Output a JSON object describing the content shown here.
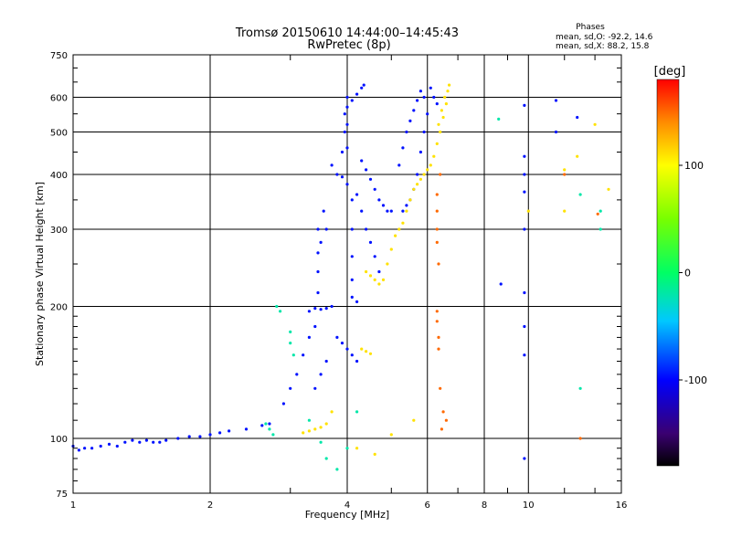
{
  "title_line1": "Tromsø 20150610 14:44:00–14:45:43",
  "title_line2": "RwPretec (8p)",
  "phases": {
    "heading": "Phases",
    "line_o": "mean, sd,O: -92.2, 14.6",
    "line_x": "mean, sd,X:  88.2, 15.8"
  },
  "colorbar": {
    "label": "[deg]",
    "range": [
      -180,
      180
    ],
    "ticks": [
      100,
      0,
      -100
    ],
    "colors": [
      "#000000",
      "#3a0070",
      "#0000ff",
      "#00ffff",
      "#00ff00",
      "#ffff00",
      "#ff8000",
      "#ff0000"
    ]
  },
  "chart_data": {
    "type": "scatter",
    "title": "Tromsø 20150610 14:44:00–14:45:43",
    "subtitle": "RwPretec (8p)",
    "xlabel": "Frequency [MHz]",
    "ylabel": "Stationary phase Virtual Height [km]",
    "x_scale": "log",
    "y_scale": "log",
    "xlim": [
      1,
      16
    ],
    "ylim": [
      75,
      750
    ],
    "x_ticks": [
      1,
      2,
      4,
      6,
      8,
      10,
      16
    ],
    "x_tick_labels": [
      "1",
      "2",
      "4",
      "6",
      "8",
      "10",
      "16"
    ],
    "y_ticks": [
      75,
      100,
      200,
      300,
      400,
      500,
      600,
      750
    ],
    "y_tick_labels": [
      "75",
      "100",
      "200",
      "300",
      "400",
      "500",
      "600",
      "750"
    ],
    "grid": true,
    "series": [
      {
        "color_value": -95,
        "points": [
          [
            1.0,
            96
          ],
          [
            1.03,
            94
          ],
          [
            1.06,
            95
          ],
          [
            1.1,
            95
          ],
          [
            1.15,
            96
          ],
          [
            1.2,
            97
          ],
          [
            1.25,
            96
          ],
          [
            1.3,
            98
          ],
          [
            1.35,
            99
          ],
          [
            1.4,
            98
          ],
          [
            1.45,
            99
          ],
          [
            1.5,
            98
          ],
          [
            1.55,
            98
          ],
          [
            1.6,
            99
          ],
          [
            1.7,
            100
          ],
          [
            1.8,
            101
          ],
          [
            1.9,
            101
          ],
          [
            2.0,
            102
          ],
          [
            2.1,
            103
          ],
          [
            2.2,
            104
          ],
          [
            2.4,
            105
          ],
          [
            2.6,
            107
          ],
          [
            2.7,
            108
          ],
          [
            2.9,
            120
          ],
          [
            3.0,
            130
          ],
          [
            3.1,
            140
          ],
          [
            3.2,
            155
          ],
          [
            3.3,
            170
          ],
          [
            3.4,
            180
          ],
          [
            3.3,
            195
          ],
          [
            3.4,
            198
          ],
          [
            3.5,
            197
          ],
          [
            3.6,
            198
          ],
          [
            3.7,
            200
          ],
          [
            3.45,
            215
          ],
          [
            3.45,
            240
          ],
          [
            3.45,
            265
          ],
          [
            3.45,
            300
          ],
          [
            3.5,
            280
          ],
          [
            3.6,
            300
          ],
          [
            3.55,
            330
          ],
          [
            3.7,
            420
          ],
          [
            3.8,
            400
          ],
          [
            3.9,
            395
          ],
          [
            3.9,
            450
          ],
          [
            3.95,
            500
          ],
          [
            3.95,
            550
          ],
          [
            4.0,
            600
          ],
          [
            4.0,
            520
          ],
          [
            4.0,
            460
          ],
          [
            4.0,
            380
          ],
          [
            4.1,
            350
          ],
          [
            4.1,
            300
          ],
          [
            4.1,
            260
          ],
          [
            4.1,
            230
          ],
          [
            4.1,
            210
          ],
          [
            4.2,
            205
          ],
          [
            4.0,
            570
          ],
          [
            4.1,
            590
          ],
          [
            4.2,
            610
          ],
          [
            4.3,
            630
          ],
          [
            4.35,
            640
          ],
          [
            4.2,
            360
          ],
          [
            4.3,
            330
          ],
          [
            4.4,
            300
          ],
          [
            4.5,
            280
          ],
          [
            4.6,
            260
          ],
          [
            4.7,
            240
          ],
          [
            4.3,
            430
          ],
          [
            4.4,
            410
          ],
          [
            4.5,
            390
          ],
          [
            4.6,
            370
          ],
          [
            4.7,
            350
          ],
          [
            4.8,
            340
          ],
          [
            4.9,
            330
          ],
          [
            5.0,
            330
          ],
          [
            5.2,
            420
          ],
          [
            5.3,
            460
          ],
          [
            5.4,
            500
          ],
          [
            5.5,
            530
          ],
          [
            5.6,
            560
          ],
          [
            5.7,
            590
          ],
          [
            5.8,
            620
          ],
          [
            5.9,
            600
          ],
          [
            6.0,
            550
          ],
          [
            5.9,
            500
          ],
          [
            5.8,
            450
          ],
          [
            5.7,
            400
          ],
          [
            5.6,
            370
          ],
          [
            5.5,
            350
          ],
          [
            5.4,
            340
          ],
          [
            5.3,
            330
          ],
          [
            6.1,
            630
          ],
          [
            6.2,
            600
          ],
          [
            6.3,
            580
          ],
          [
            3.8,
            170
          ],
          [
            3.9,
            165
          ],
          [
            4.0,
            160
          ],
          [
            4.1,
            155
          ],
          [
            4.2,
            150
          ],
          [
            3.4,
            130
          ],
          [
            3.5,
            140
          ],
          [
            3.6,
            150
          ],
          [
            9.8,
            575
          ],
          [
            9.8,
            440
          ],
          [
            9.8,
            400
          ],
          [
            9.8,
            365
          ],
          [
            9.8,
            300
          ],
          [
            9.8,
            215
          ],
          [
            9.8,
            180
          ],
          [
            9.8,
            155
          ],
          [
            9.8,
            90
          ],
          [
            8.7,
            225
          ],
          [
            11.5,
            590
          ],
          [
            11.5,
            500
          ],
          [
            12.8,
            540
          ]
        ]
      },
      {
        "color_value": -20,
        "points": [
          [
            2.65,
            108
          ],
          [
            2.7,
            105
          ],
          [
            2.75,
            102
          ],
          [
            2.8,
            200
          ],
          [
            2.85,
            195
          ],
          [
            3.0,
            175
          ],
          [
            3.0,
            165
          ],
          [
            3.05,
            155
          ],
          [
            3.3,
            110
          ],
          [
            3.5,
            98
          ],
          [
            3.6,
            90
          ],
          [
            3.8,
            85
          ],
          [
            4.0,
            95
          ],
          [
            4.2,
            115
          ],
          [
            8.6,
            535
          ],
          [
            13.0,
            360
          ],
          [
            13.0,
            130
          ],
          [
            14.4,
            300
          ],
          [
            14.4,
            330
          ]
        ]
      },
      {
        "color_value": 110,
        "points": [
          [
            4.4,
            240
          ],
          [
            4.5,
            235
          ],
          [
            4.6,
            230
          ],
          [
            4.7,
            225
          ],
          [
            4.8,
            230
          ],
          [
            4.9,
            250
          ],
          [
            5.0,
            270
          ],
          [
            5.1,
            290
          ],
          [
            5.2,
            300
          ],
          [
            5.3,
            310
          ],
          [
            5.4,
            330
          ],
          [
            5.5,
            350
          ],
          [
            5.6,
            370
          ],
          [
            5.7,
            380
          ],
          [
            5.8,
            390
          ],
          [
            5.9,
            400
          ],
          [
            6.0,
            410
          ],
          [
            6.1,
            420
          ],
          [
            6.2,
            440
          ],
          [
            6.3,
            470
          ],
          [
            6.4,
            500
          ],
          [
            6.5,
            540
          ],
          [
            6.6,
            580
          ],
          [
            6.65,
            620
          ],
          [
            6.7,
            640
          ],
          [
            6.55,
            600
          ],
          [
            6.45,
            560
          ],
          [
            6.35,
            520
          ],
          [
            3.2,
            103
          ],
          [
            3.3,
            104
          ],
          [
            3.4,
            105
          ],
          [
            3.5,
            106
          ],
          [
            3.6,
            108
          ],
          [
            4.3,
            160
          ],
          [
            4.4,
            158
          ],
          [
            4.5,
            156
          ],
          [
            3.7,
            115
          ],
          [
            4.2,
            95
          ],
          [
            4.6,
            92
          ],
          [
            5.0,
            102
          ],
          [
            5.6,
            110
          ],
          [
            10.0,
            330
          ],
          [
            12.0,
            410
          ],
          [
            12.0,
            330
          ],
          [
            12.8,
            440
          ],
          [
            14.0,
            520
          ],
          [
            15.0,
            370
          ]
        ]
      },
      {
        "color_value": 150,
        "points": [
          [
            6.3,
            360
          ],
          [
            6.3,
            330
          ],
          [
            6.3,
            300
          ],
          [
            6.3,
            280
          ],
          [
            6.35,
            250
          ],
          [
            6.3,
            195
          ],
          [
            6.3,
            185
          ],
          [
            6.35,
            170
          ],
          [
            6.35,
            160
          ],
          [
            6.4,
            130
          ],
          [
            6.5,
            115
          ],
          [
            6.6,
            110
          ],
          [
            6.45,
            105
          ],
          [
            6.4,
            400
          ],
          [
            12.0,
            400
          ],
          [
            13.0,
            100
          ],
          [
            14.2,
            325
          ]
        ]
      }
    ]
  }
}
